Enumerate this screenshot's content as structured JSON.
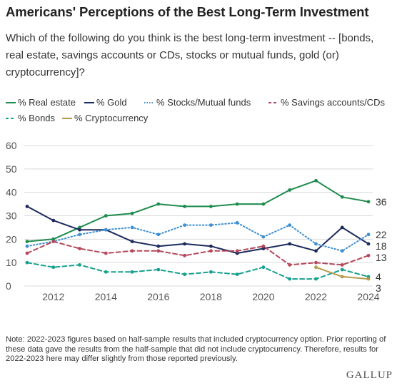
{
  "header": {
    "title": "Americans' Perceptions of the Best Long-Term Investment",
    "subtitle": "Which of the following do you think is the best long-term investment -- [bonds, real estate, savings accounts or CDs, stocks or mutual funds, gold (or) cryptocurrency]?"
  },
  "footer": {
    "note": "Note: 2022-2023 figures based on half-sample results that included cryptocurrency option. Prior reporting of these data gave the results from the half-sample that did not include cryptocurrency. Therefore, results for 2022-2023 here may differ slightly from those reported previously.",
    "source": "GALLUP"
  },
  "chart_data": {
    "type": "line",
    "x": [
      2011,
      2012,
      2013,
      2014,
      2015,
      2016,
      2017,
      2018,
      2019,
      2020,
      2021,
      2022,
      2023,
      2024
    ],
    "xlim": [
      2011,
      2024
    ],
    "xticks": [
      2012,
      2014,
      2016,
      2018,
      2020,
      2022,
      2024
    ],
    "ylim": [
      0,
      60
    ],
    "yticks": [
      0,
      10,
      20,
      30,
      40,
      50,
      60
    ],
    "grid": "horizontal",
    "legend_position": "top",
    "series": [
      {
        "name": "% Real estate",
        "color": "#1e8c4e",
        "dash": "solid",
        "values": [
          19,
          20,
          25,
          30,
          31,
          35,
          34,
          34,
          35,
          35,
          41,
          45,
          38,
          36
        ],
        "end_label": "36"
      },
      {
        "name": "% Gold",
        "color": "#1b2a5c",
        "dash": "solid",
        "values": [
          34,
          28,
          24,
          24,
          19,
          17,
          18,
          17,
          14,
          16,
          18,
          15,
          25,
          18
        ],
        "end_label": "18"
      },
      {
        "name": "% Stocks/Mutual funds",
        "color": "#3d8fd1",
        "dash": "dotted",
        "values": [
          17,
          19,
          22,
          24,
          25,
          22,
          26,
          26,
          27,
          21,
          26,
          18,
          15,
          22
        ],
        "end_label": "22"
      },
      {
        "name": "% Savings accounts/CDs",
        "color": "#b5485b",
        "dash": "dashed",
        "values": [
          14,
          19,
          16,
          14,
          15,
          15,
          13,
          15,
          15,
          17,
          9,
          10,
          9,
          13
        ],
        "end_label": "13"
      },
      {
        "name": "% Bonds",
        "color": "#17a08e",
        "dash": "dashed",
        "values": [
          10,
          8,
          9,
          6,
          6,
          7,
          5,
          6,
          5,
          8,
          3,
          3,
          7,
          4
        ],
        "end_label": "4"
      },
      {
        "name": "% Cryptocurrency",
        "color": "#b59a4b",
        "dash": "solid",
        "values": [
          null,
          null,
          null,
          null,
          null,
          null,
          null,
          null,
          null,
          null,
          null,
          8,
          4,
          3
        ],
        "end_label": "3"
      }
    ]
  }
}
